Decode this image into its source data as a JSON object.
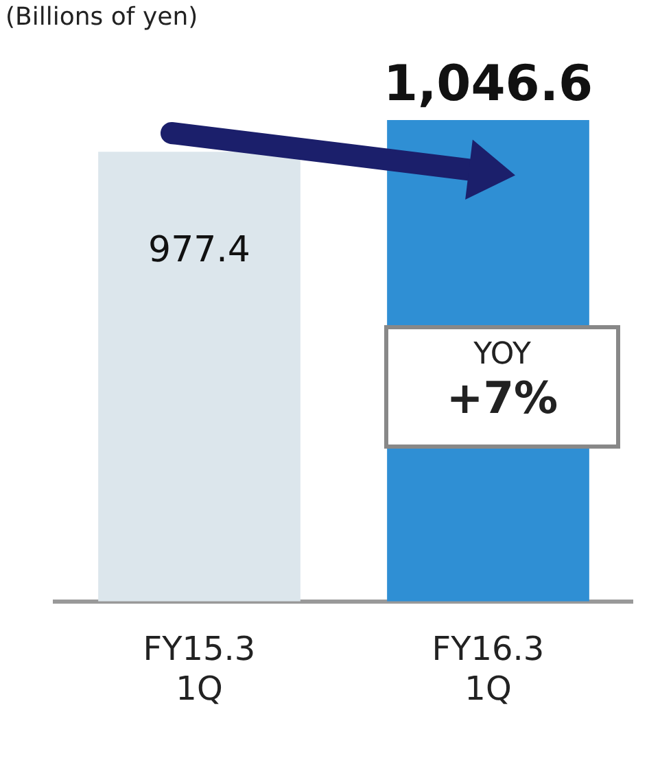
{
  "chart_data": {
    "type": "bar",
    "categories": [
      "FY15.3 1Q",
      "FY16.3 1Q"
    ],
    "values": [
      977.4,
      1046.6
    ],
    "colors": [
      "#dce6ec",
      "#2f8fd4"
    ],
    "value_labels": [
      "977.4",
      "1,046.6"
    ],
    "annotations": [
      "(Billions of yen)",
      "YOY",
      "+7%"
    ],
    "grid": false,
    "legend": false
  }
}
